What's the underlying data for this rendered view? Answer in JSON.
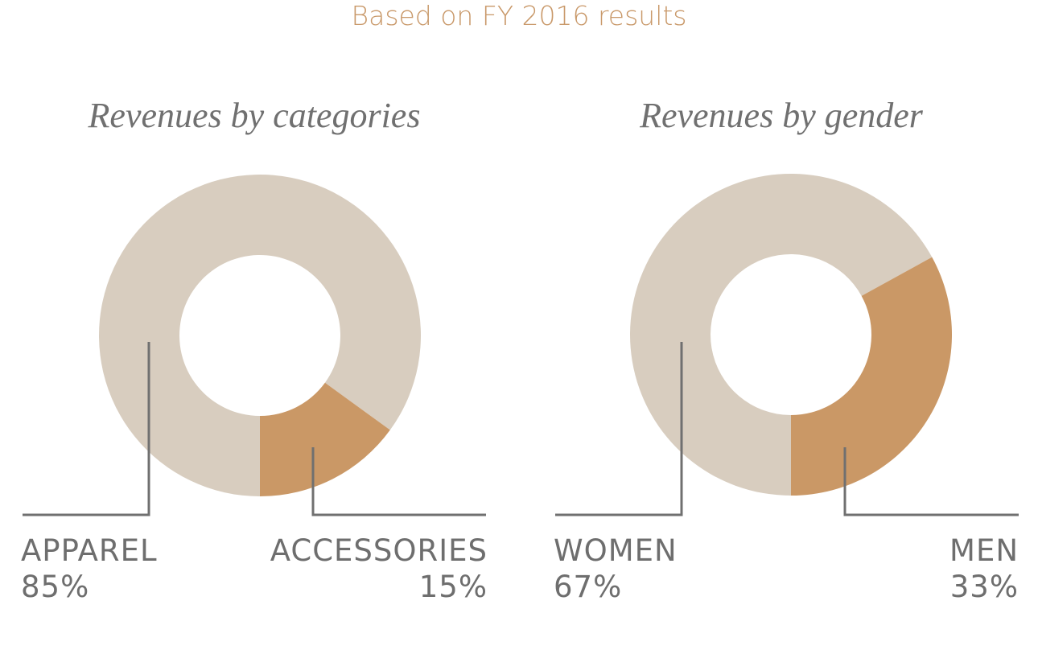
{
  "subtitle": "Based on FY 2016 results",
  "colors": {
    "primary": "#d8cdbf",
    "accent": "#ca9866",
    "subtitle": "#c9996a",
    "text": "#6e6e6e",
    "leader_line": "#707070"
  },
  "chart_data": [
    {
      "type": "pie",
      "donut": true,
      "title": "Revenues by categories",
      "categories": [
        "APPAREL",
        "ACCESSORIES"
      ],
      "values": [
        85,
        15
      ],
      "labels": [
        "85%",
        "15%"
      ],
      "colors": [
        "#d8cdbf",
        "#ca9866"
      ]
    },
    {
      "type": "pie",
      "donut": true,
      "title": "Revenues by gender",
      "categories": [
        "WOMEN",
        "MEN"
      ],
      "values": [
        67,
        33
      ],
      "labels": [
        "67%",
        "33%"
      ],
      "colors": [
        "#d8cdbf",
        "#ca9866"
      ]
    }
  ]
}
